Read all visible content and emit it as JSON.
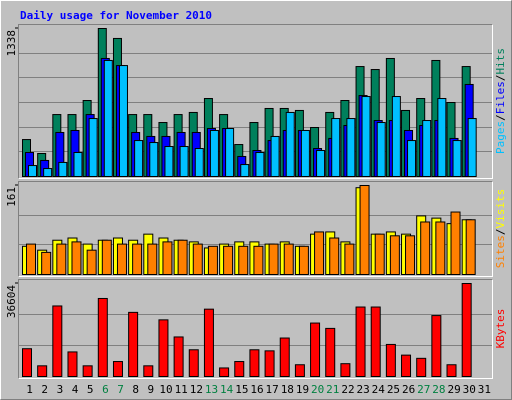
{
  "chart_data": [
    {
      "type": "bar",
      "title": "Daily usage for November 2010",
      "ylim": [
        0,
        1338
      ],
      "yticks": [
        1338
      ],
      "grid_divisions": 6,
      "legend_separator": "/",
      "series": [
        {
          "name": "Hits",
          "color": "#00805c",
          "values": [
            334,
            208,
            560,
            560,
            687,
            1338,
            1248,
            560,
            560,
            488,
            560,
            579,
            705,
            560,
            289,
            488,
            615,
            615,
            597,
            443,
            579,
            687,
            994,
            967,
            1067,
            597,
            705,
            1049,
            669,
            994,
            0
          ]
        },
        {
          "name": "Files",
          "color": "#0000ff",
          "values": [
            217,
            145,
            398,
            416,
            560,
            1067,
            1003,
            398,
            362,
            362,
            398,
            398,
            434,
            434,
            181,
            235,
            325,
            416,
            416,
            253,
            344,
            461,
            732,
            506,
            506,
            416,
            461,
            506,
            344,
            832,
            0
          ]
        },
        {
          "name": "Pages",
          "color": "#00c0ff",
          "values": [
            99,
            72,
            127,
            217,
            524,
            1049,
            1003,
            325,
            307,
            271,
            271,
            253,
            416,
            434,
            108,
            217,
            362,
            579,
            416,
            235,
            524,
            524,
            723,
            488,
            723,
            325,
            506,
            705,
            325,
            524,
            0
          ]
        }
      ]
    },
    {
      "type": "bar",
      "ylim": [
        0,
        161
      ],
      "yticks": [
        161
      ],
      "grid_divisions": 3,
      "legend_separator": "/",
      "series": [
        {
          "name": "Visits",
          "color": "#ffff00",
          "values": [
            51,
            44,
            62,
            66,
            55,
            62,
            66,
            62,
            73,
            66,
            62,
            59,
            48,
            55,
            59,
            59,
            55,
            59,
            51,
            73,
            77,
            59,
            157,
            73,
            77,
            73,
            106,
            102,
            92,
            99,
            0
          ]
        },
        {
          "name": "Sites",
          "color": "#ff8000",
          "values": [
            55,
            40,
            55,
            59,
            44,
            62,
            55,
            55,
            55,
            59,
            62,
            55,
            51,
            51,
            51,
            51,
            55,
            55,
            51,
            77,
            66,
            55,
            161,
            73,
            70,
            70,
            95,
            95,
            113,
            99,
            0
          ]
        }
      ]
    },
    {
      "type": "bar",
      "ylim": [
        0,
        36604
      ],
      "yticks": [
        36604
      ],
      "grid_divisions": 3,
      "legend_separator": "/",
      "categories": [
        "1",
        "2",
        "3",
        "4",
        "5",
        "6",
        "7",
        "8",
        "9",
        "10",
        "11",
        "12",
        "13",
        "14",
        "15",
        "16",
        "17",
        "18",
        "19",
        "20",
        "21",
        "22",
        "23",
        "24",
        "25",
        "26",
        "27",
        "28",
        "29",
        "30",
        "31"
      ],
      "category_colors": [
        "#000000",
        "#000000",
        "#000000",
        "#000000",
        "#000000",
        "#008040",
        "#008040",
        "#000000",
        "#000000",
        "#000000",
        "#000000",
        "#000000",
        "#008040",
        "#008040",
        "#000000",
        "#000000",
        "#000000",
        "#000000",
        "#000000",
        "#008040",
        "#008040",
        "#000000",
        "#000000",
        "#000000",
        "#000000",
        "#000000",
        "#008040",
        "#008040",
        "#000000",
        "#000000",
        "#000000"
      ],
      "series": [
        {
          "name": "KBytes",
          "color": "#ff0000",
          "values": [
            10938,
            4207,
            27766,
            9676,
            4207,
            30711,
            5890,
            25242,
            4207,
            22297,
            15566,
            10518,
            26504,
            3366,
            5890,
            10518,
            10097,
            15145,
            4628,
            21035,
            18932,
            5048,
            27346,
            27346,
            12621,
            8414,
            7152,
            23980,
            4628,
            36604,
            0
          ]
        }
      ]
    }
  ]
}
